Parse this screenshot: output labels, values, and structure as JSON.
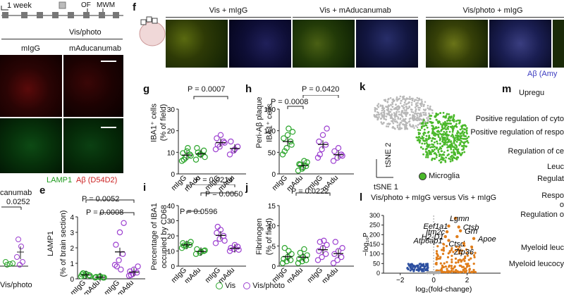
{
  "timeline": {
    "week_label": "1 week",
    "marks": [
      "OF",
      "MWM"
    ]
  },
  "left_panel": {
    "group_label": "Vis/photo",
    "col_labels": [
      "mIgG",
      "mAducanumab"
    ],
    "stain_legend": {
      "a": "LAMP1",
      "b": "Aβ (D54D2)"
    },
    "partial_label": "canumab",
    "partial_p": "0.0252",
    "partial_group": "Vis/photo"
  },
  "panel_e": {
    "letter": "e",
    "ylabel": "LAMP1",
    "ylabel2": "(% of brain section)",
    "p_top": "P = 0.0052",
    "p_mid": "P = 0.0008",
    "xcats": [
      "mIgG",
      "mAdu",
      "mIgG",
      "mAdu"
    ],
    "ticks": [
      "0",
      "1",
      "2",
      "3",
      "4"
    ]
  },
  "panel_f": {
    "letter": "f",
    "titles": [
      "Vis + mIgG",
      "Vis + mAducanumab",
      "Vis/photo + mIgG"
    ],
    "stain_caption": "Aβ (Amy"
  },
  "panel_g": {
    "letter": "g",
    "ylabel": "IBA1⁺ cells",
    "ylabel2": "(% of field)",
    "p": "P = 0.0007",
    "ticks": [
      "0",
      "10",
      "20",
      "30"
    ],
    "xcats": [
      "mIgG",
      "mAdu",
      "mIgG",
      "mAdu"
    ]
  },
  "panel_h": {
    "letter": "h",
    "ylabel": "Peri-Aβ plaque",
    "ylabel2": "IBA1⁺ cells",
    "p_top": "P = 0.0420",
    "p_mid": "P = 0.0008",
    "ticks": [
      "0",
      "50",
      "100",
      "150"
    ],
    "xcats": [
      "mIgG",
      "mAdu",
      "mIgG",
      "mAdu"
    ]
  },
  "panel_i": {
    "letter": "i",
    "ylabel": "Percentage of IBA1",
    "ylabel2": "occupied by CD68",
    "p_top": "P = 0.0214",
    "p_a": "P = 0.0050",
    "p_b": "P = 0.0596",
    "ticks": [
      "0",
      "10",
      "20",
      "30",
      "40"
    ],
    "xcats": [
      "mIgG",
      "mAdu",
      "mIgG",
      "mAdu"
    ]
  },
  "panel_j": {
    "letter": "j",
    "ylabel": "Fibrinogen",
    "ylabel2": "(% of field)",
    "p": "P = 0.0222",
    "ticks": [
      "0",
      "5",
      "10",
      "15"
    ],
    "xcats": [
      "mIgG",
      "mAdu",
      "mIgG",
      "mAdu"
    ]
  },
  "legend": {
    "vis": "Vis",
    "visphoto": "Vis/photo"
  },
  "panel_k": {
    "letter": "k",
    "axis_y": "tSNE 2",
    "axis_x": "tSNE 1",
    "cluster": "Microglia"
  },
  "panel_l": {
    "letter": "l",
    "title": "Vis/photo + mIgG versus Vis + mIgG",
    "ylabel": "−log₁₀P",
    "xlabel": "log₂(fold-change)",
    "yticks": [
      "0",
      "50",
      "100",
      "150",
      "200",
      "250",
      "300"
    ],
    "xticks": [
      "−2",
      "0",
      "2"
    ],
    "genes": [
      "Lgmn",
      "Eef1a1",
      "Ctsb",
      "Itm2c",
      "Grn",
      "H2-D1",
      "Ctsd",
      "Apoe",
      "Atp6ap1",
      "Zfp36"
    ]
  },
  "panel_m": {
    "letter": "m",
    "header": "Upregu",
    "terms": [
      "Positive regulation of cyto",
      "Positive regulation of respo",
      "Regulation of ce",
      "Leuc",
      "Regulat",
      "Respo",
      "o",
      "Regulation o",
      "Myeloid leuc",
      "Myeloid leucocy"
    ]
  },
  "colors": {
    "vis": "#2aa52a",
    "visphoto": "#9c3fd0",
    "orange": "#e07d1a",
    "blue": "#2c4fa0"
  }
}
